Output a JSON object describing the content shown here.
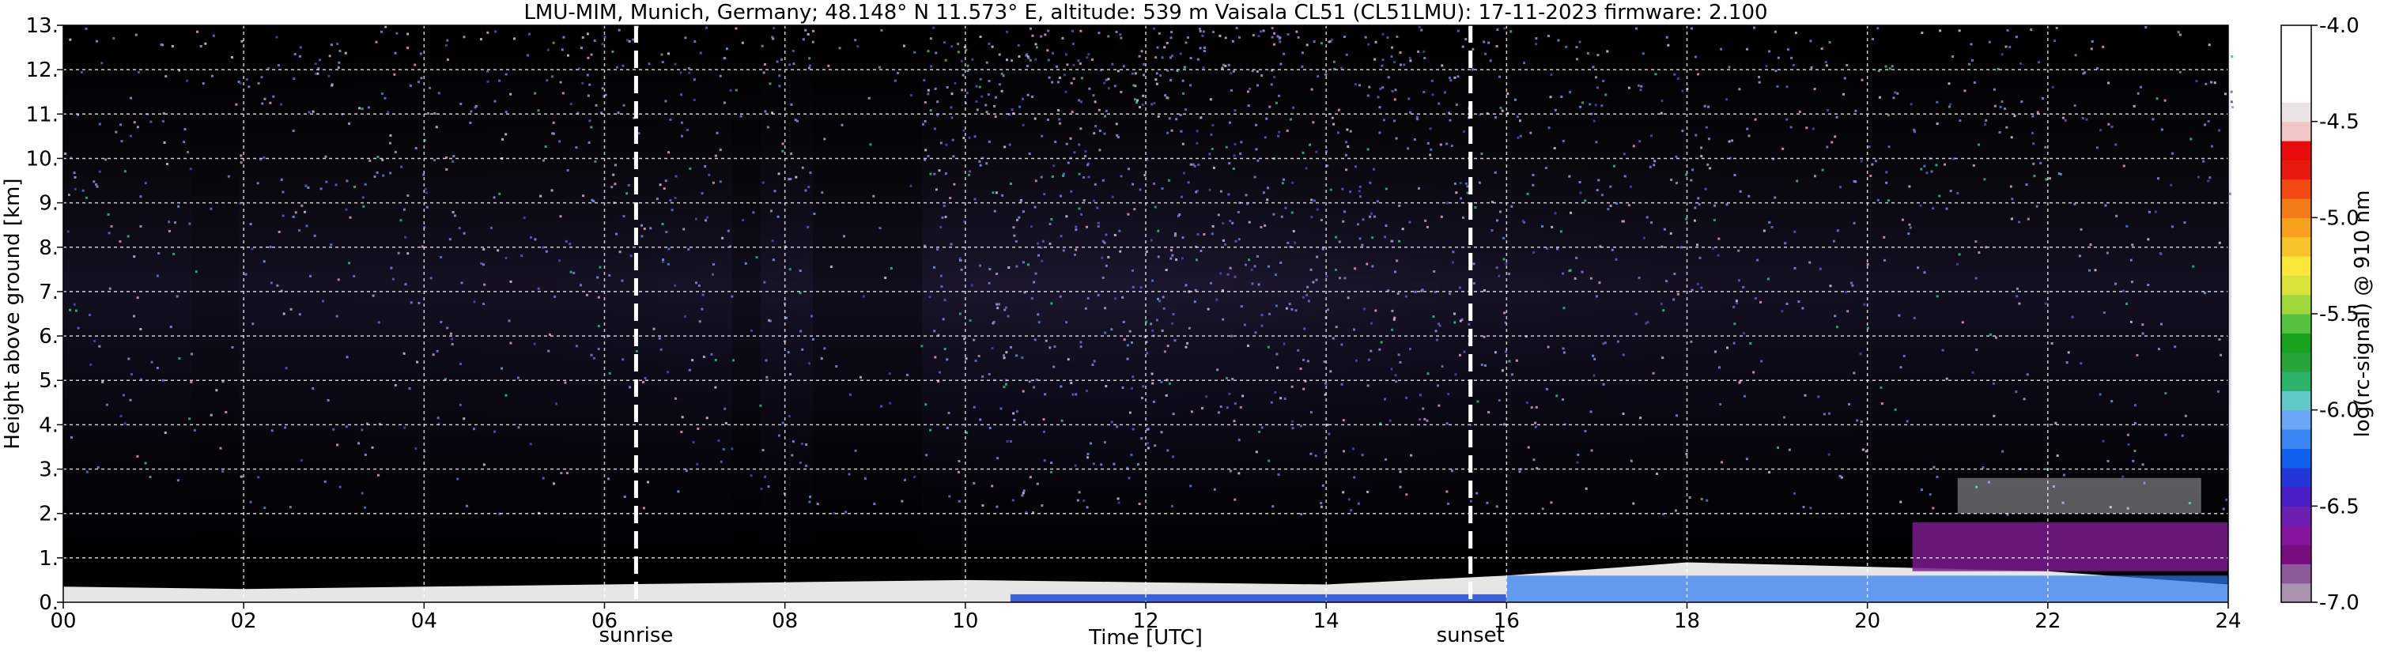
{
  "chart_data": {
    "type": "heatmap",
    "title": "LMU-MIM, Munich, Germany; 48.148° N 11.573° E, altitude: 539 m    Vaisala CL51 (CL51LMU): 17-11-2023    firmware: 2.100",
    "xlabel": "Time [UTC]",
    "ylabel": "Height above ground [km]",
    "xlim": [
      0,
      24
    ],
    "ylim": [
      0,
      13
    ],
    "x_ticks": [
      {
        "value": 0,
        "label": "00"
      },
      {
        "value": 2,
        "label": "02"
      },
      {
        "value": 4,
        "label": "04"
      },
      {
        "value": 6,
        "label": "06"
      },
      {
        "value": 8,
        "label": "08"
      },
      {
        "value": 10,
        "label": "10"
      },
      {
        "value": 12,
        "label": "12"
      },
      {
        "value": 14,
        "label": "14"
      },
      {
        "value": 16,
        "label": "16"
      },
      {
        "value": 18,
        "label": "18"
      },
      {
        "value": 20,
        "label": "20"
      },
      {
        "value": 22,
        "label": "22"
      },
      {
        "value": 24,
        "label": "24"
      }
    ],
    "y_ticks": [
      {
        "value": 0,
        "label": "0."
      },
      {
        "value": 1,
        "label": "1."
      },
      {
        "value": 2,
        "label": "2."
      },
      {
        "value": 3,
        "label": "3."
      },
      {
        "value": 4,
        "label": "4."
      },
      {
        "value": 5,
        "label": "5."
      },
      {
        "value": 6,
        "label": "6."
      },
      {
        "value": 7,
        "label": "7."
      },
      {
        "value": 8,
        "label": "8."
      },
      {
        "value": 9,
        "label": "9."
      },
      {
        "value": 10,
        "label": "10."
      },
      {
        "value": 11,
        "label": "11."
      },
      {
        "value": 12,
        "label": "12."
      },
      {
        "value": 13,
        "label": "13."
      }
    ],
    "grid": true,
    "annotations": [
      {
        "label": "sunrise",
        "time": 6.35
      },
      {
        "label": "sunset",
        "time": 15.6
      }
    ],
    "colorbar": {
      "label": "log(rc-signal) @ 910 nm",
      "range": [
        -7.0,
        -4.0
      ],
      "ticks": [
        {
          "value": -4.0,
          "label": "-4.0"
        },
        {
          "value": -4.5,
          "label": "-4.5"
        },
        {
          "value": -5.0,
          "label": "-5.0"
        },
        {
          "value": -5.5,
          "label": "-5.5"
        },
        {
          "value": -6.0,
          "label": "-6.0"
        },
        {
          "value": -6.5,
          "label": "-6.5"
        },
        {
          "value": -7.0,
          "label": "-7.0"
        }
      ],
      "colors": [
        "#a892ad",
        "#8c5a9a",
        "#760f7d",
        "#86159e",
        "#6a1fb0",
        "#4a1ec5",
        "#2436d8",
        "#1060f0",
        "#3a86f2",
        "#6aa6f4",
        "#62c8c6",
        "#2db26b",
        "#27a53a",
        "#18a21e",
        "#54c23e",
        "#9ed63c",
        "#d8e23a",
        "#fae53a",
        "#f8c32a",
        "#f6a01e",
        "#f47a18",
        "#f04a12",
        "#e81a0e",
        "#e80c0c",
        "#f0c6c6",
        "#ebe3e3",
        "#ffffff",
        "#ffffff",
        "#ffffff",
        "#ffffff"
      ]
    },
    "layers": [
      {
        "name": "surface-aerosol",
        "t0": 0.0,
        "t1": 24.0,
        "heights": [
          0.35,
          0.3,
          0.35,
          0.4,
          0.45,
          0.5,
          0.45,
          0.4,
          0.6,
          0.9,
          0.8,
          0.7,
          0.4
        ]
      },
      {
        "name": "cloud-deck-evening",
        "t0": 20.5,
        "t1": 24.0,
        "base": 0.7,
        "top": 1.8
      },
      {
        "name": "cloud-tops-night",
        "t0": 21.0,
        "t1": 23.7,
        "base": 2.0,
        "top": 2.8
      }
    ]
  }
}
